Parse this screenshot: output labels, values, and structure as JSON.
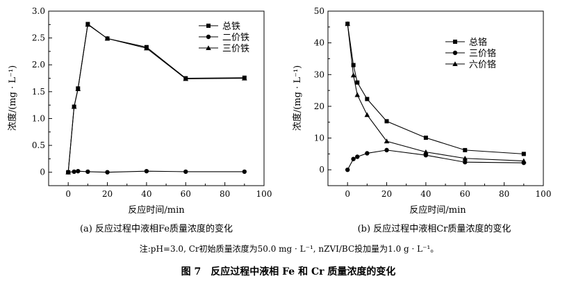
{
  "chart_data": [
    {
      "type": "line",
      "panel": "a",
      "xlabel": "反应时间/min",
      "ylabel": "浓度/(mg · L⁻¹)",
      "xlim": [
        -10,
        100
      ],
      "ylim": [
        -0.25,
        3.0
      ],
      "xticks": [
        0,
        20,
        40,
        60,
        80,
        100
      ],
      "yticks": [
        0,
        0.5,
        1.0,
        1.5,
        2.0,
        2.5,
        3.0
      ],
      "xtick_labels": [
        "0",
        "20",
        "40",
        "60",
        "80",
        "100"
      ],
      "ytick_labels": [
        "0",
        "0.5",
        "1.0",
        "1.5",
        "2.0",
        "2.5",
        "3.0"
      ],
      "legend_position": "top-right",
      "series": [
        {
          "name": "总铁",
          "marker": "square",
          "x": [
            0,
            3,
            5,
            10,
            20,
            40,
            60,
            90
          ],
          "y": [
            0,
            1.22,
            1.56,
            2.76,
            2.49,
            2.33,
            1.75,
            1.76
          ]
        },
        {
          "name": "二价铁",
          "marker": "circle",
          "x": [
            0,
            3,
            5,
            10,
            20,
            40,
            60,
            90
          ],
          "y": [
            0,
            0.01,
            0.02,
            0.01,
            0.0,
            0.02,
            0.01,
            0.01
          ]
        },
        {
          "name": "三价铁",
          "marker": "triangle",
          "x": [
            0,
            3,
            5,
            10,
            20,
            40,
            60,
            90
          ],
          "y": [
            0,
            1.22,
            1.55,
            2.75,
            2.49,
            2.31,
            1.74,
            1.75
          ]
        }
      ],
      "caption": "(a) 反应过程中液相Fe质量浓度的变化"
    },
    {
      "type": "line",
      "panel": "b",
      "xlabel": "反应时间/min",
      "ylabel": "浓度/(mg · L⁻¹)",
      "xlim": [
        -10,
        100
      ],
      "ylim": [
        -5,
        50
      ],
      "xticks": [
        0,
        20,
        40,
        60,
        80,
        100
      ],
      "yticks": [
        0,
        10,
        20,
        30,
        40,
        50
      ],
      "xtick_labels": [
        "0",
        "20",
        "40",
        "60",
        "80",
        "100"
      ],
      "ytick_labels": [
        "0",
        "10",
        "20",
        "30",
        "40",
        "50"
      ],
      "legend_position": "top-right",
      "series": [
        {
          "name": "总铬",
          "marker": "square",
          "x": [
            0,
            3,
            5,
            10,
            20,
            40,
            60,
            90
          ],
          "y": [
            46,
            33,
            27.5,
            22.3,
            15.3,
            10.1,
            6.2,
            5.0
          ]
        },
        {
          "name": "三价铬",
          "marker": "circle",
          "x": [
            0,
            3,
            5,
            10,
            20,
            40,
            60,
            90
          ],
          "y": [
            0,
            3.4,
            4.1,
            5.2,
            6.2,
            4.6,
            2.4,
            2.2
          ]
        },
        {
          "name": "六价铬",
          "marker": "triangle",
          "x": [
            0,
            3,
            5,
            10,
            20,
            40,
            60,
            90
          ],
          "y": [
            46,
            29.8,
            23.6,
            17.3,
            9.0,
            5.6,
            3.6,
            2.8
          ]
        }
      ],
      "caption": "(b) 反应过程中液相Cr质量浓度的变化"
    }
  ],
  "note": "注:pH=3.0, Cr初始质量浓度为50.0 mg · L⁻¹, nZVI/BC投加量为1.0 g · L⁻¹。",
  "figure_title": "图 7　反应过程中液相 Fe 和 Cr 质量浓度的变化"
}
